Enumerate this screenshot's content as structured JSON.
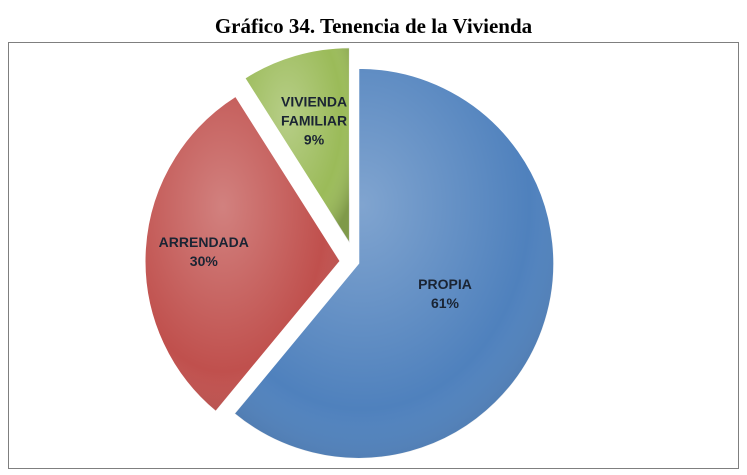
{
  "chart_data": {
    "type": "pie",
    "title": "Gráfico 34. Tenencia de la Vivienda",
    "categories": [
      "PROPIA",
      "ARRENDADA",
      "VIVIENDA FAMILIAR"
    ],
    "values": [
      61,
      30,
      9
    ],
    "value_labels": [
      "61%",
      "30%",
      "9%"
    ],
    "colors": [
      "#4f81bd",
      "#c0504d",
      "#9bbb59"
    ]
  }
}
